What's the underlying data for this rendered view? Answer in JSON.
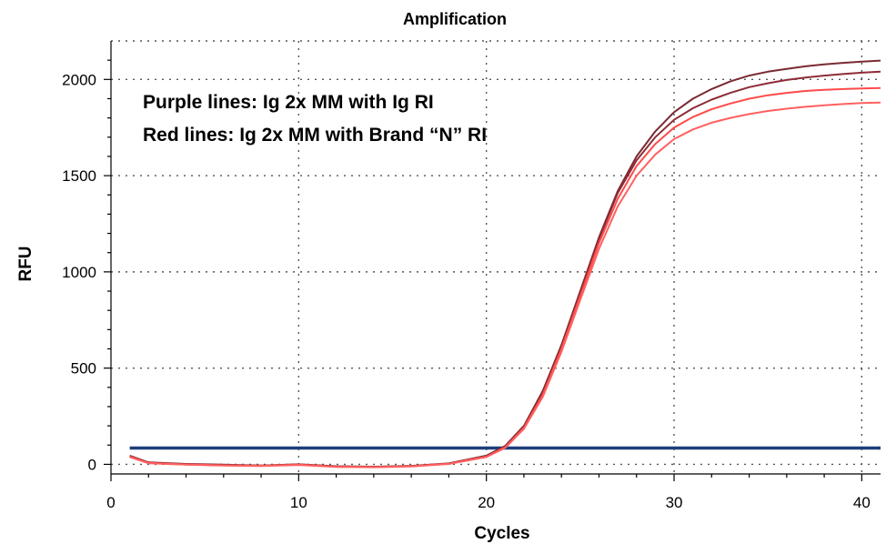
{
  "chart_data": {
    "type": "line",
    "title": "Amplification",
    "xlabel": "Cycles",
    "ylabel": "RFU",
    "xlim": [
      0,
      41
    ],
    "ylim": [
      -50,
      2200
    ],
    "xticks": [
      0,
      10,
      20,
      30,
      40
    ],
    "yticks": [
      0,
      500,
      1000,
      1500,
      2000
    ],
    "grid": true,
    "annotations": [
      "Purple lines: Ig 2x MM with Ig RI",
      "Red lines: Ig 2x MM with Brand “N” RI"
    ],
    "threshold": {
      "value": 85,
      "x": [
        1,
        41
      ],
      "color": "#1f3f7a"
    },
    "series": [
      {
        "color": "#7a2a33",
        "x": [
          1,
          2,
          4,
          6,
          8,
          10,
          12,
          14,
          16,
          18,
          20,
          21,
          22,
          23,
          24,
          25,
          26,
          27,
          28,
          29,
          30,
          31,
          32,
          33,
          34,
          35,
          36,
          37,
          38,
          39,
          40,
          41
        ],
        "y": [
          45,
          10,
          2,
          -2,
          -6,
          0,
          -10,
          -12,
          -8,
          5,
          45,
          95,
          200,
          380,
          620,
          900,
          1180,
          1420,
          1600,
          1730,
          1830,
          1900,
          1950,
          1990,
          2020,
          2040,
          2055,
          2068,
          2078,
          2086,
          2092,
          2098
        ]
      },
      {
        "color": "#8e2c36",
        "x": [
          1,
          2,
          4,
          6,
          8,
          10,
          12,
          14,
          16,
          18,
          20,
          21,
          22,
          23,
          24,
          25,
          26,
          27,
          28,
          29,
          30,
          31,
          32,
          33,
          34,
          35,
          36,
          37,
          38,
          39,
          40,
          41
        ],
        "y": [
          42,
          8,
          0,
          -4,
          -7,
          -1,
          -11,
          -13,
          -9,
          4,
          42,
          90,
          195,
          370,
          610,
          890,
          1170,
          1410,
          1580,
          1700,
          1790,
          1850,
          1895,
          1930,
          1960,
          1980,
          1997,
          2010,
          2020,
          2028,
          2035,
          2040
        ]
      },
      {
        "color": "#ff4a4a",
        "x": [
          1,
          2,
          4,
          6,
          8,
          10,
          12,
          14,
          16,
          18,
          20,
          21,
          22,
          23,
          24,
          25,
          26,
          27,
          28,
          29,
          30,
          31,
          32,
          33,
          34,
          35,
          36,
          37,
          38,
          39,
          40,
          41
        ],
        "y": [
          40,
          7,
          -1,
          -5,
          -8,
          -2,
          -12,
          -14,
          -10,
          3,
          40,
          88,
          190,
          360,
          600,
          875,
          1150,
          1380,
          1550,
          1665,
          1750,
          1805,
          1845,
          1875,
          1900,
          1918,
          1930,
          1940,
          1946,
          1950,
          1953,
          1955
        ]
      },
      {
        "color": "#ff6060",
        "x": [
          1,
          2,
          4,
          6,
          8,
          10,
          12,
          14,
          16,
          18,
          20,
          21,
          22,
          23,
          24,
          25,
          26,
          27,
          28,
          29,
          30,
          31,
          32,
          33,
          34,
          35,
          36,
          37,
          38,
          39,
          40,
          41
        ],
        "y": [
          38,
          6,
          -2,
          -6,
          -9,
          -3,
          -13,
          -15,
          -11,
          2,
          38,
          85,
          185,
          350,
          585,
          855,
          1120,
          1340,
          1500,
          1610,
          1690,
          1740,
          1775,
          1800,
          1820,
          1836,
          1848,
          1858,
          1866,
          1872,
          1877,
          1880
        ]
      }
    ]
  }
}
